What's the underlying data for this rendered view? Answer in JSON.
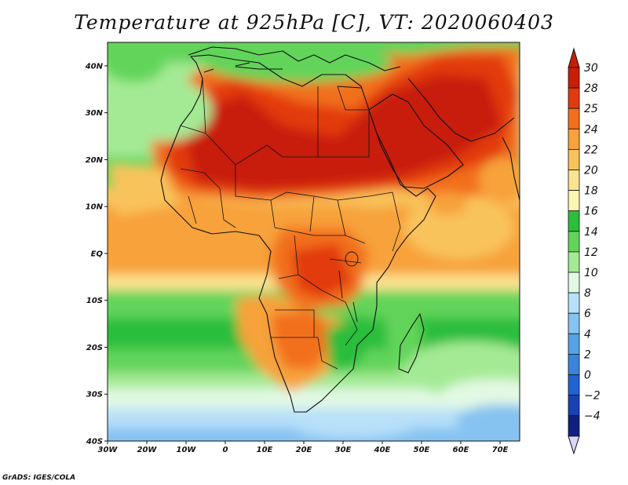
{
  "title": "Temperature at 925hPa [C], VT: 2020060403",
  "credit": "GrADS: IGES/COLA",
  "map": {
    "lon_range": [
      -30,
      75
    ],
    "lat_range": [
      -40,
      45
    ],
    "lat_ticks": [
      {
        "value": 40,
        "label": "40N"
      },
      {
        "value": 30,
        "label": "30N"
      },
      {
        "value": 20,
        "label": "20N"
      },
      {
        "value": 10,
        "label": "10N"
      },
      {
        "value": 0,
        "label": "EQ"
      },
      {
        "value": -10,
        "label": "10S"
      },
      {
        "value": -20,
        "label": "20S"
      },
      {
        "value": -30,
        "label": "30S"
      },
      {
        "value": -40,
        "label": "40S"
      }
    ],
    "lon_ticks": [
      {
        "value": -30,
        "label": "30W"
      },
      {
        "value": -20,
        "label": "20W"
      },
      {
        "value": -10,
        "label": "10W"
      },
      {
        "value": 0,
        "label": "0"
      },
      {
        "value": 10,
        "label": "10E"
      },
      {
        "value": 20,
        "label": "20E"
      },
      {
        "value": 30,
        "label": "30E"
      },
      {
        "value": 40,
        "label": "40E"
      },
      {
        "value": 50,
        "label": "50E"
      },
      {
        "value": 60,
        "label": "60E"
      },
      {
        "value": 70,
        "label": "70E"
      }
    ]
  },
  "colorbar": {
    "levels": [
      {
        "label": "30",
        "color": "#c81e08"
      },
      {
        "label": "28",
        "color": "#e23a10"
      },
      {
        "label": "25",
        "color": "#f2701a"
      },
      {
        "label": "24",
        "color": "#f7a23a"
      },
      {
        "label": "22",
        "color": "#f9c35c"
      },
      {
        "label": "20",
        "color": "#fbe391"
      },
      {
        "label": "18",
        "color": "#fcf5b4"
      },
      {
        "label": "16",
        "color": "#2cbe3c"
      },
      {
        "label": "14",
        "color": "#62d45a"
      },
      {
        "label": "12",
        "color": "#a4ea94"
      },
      {
        "label": "10",
        "color": "#e2f9e4"
      },
      {
        "label": "8",
        "color": "#b7e0f9"
      },
      {
        "label": "6",
        "color": "#86c3f1"
      },
      {
        "label": "4",
        "color": "#56a2e7"
      },
      {
        "label": "2",
        "color": "#3a84de"
      },
      {
        "label": "0",
        "color": "#2062d2"
      },
      {
        "label": "−2",
        "color": "#1842b3"
      },
      {
        "label": "−4",
        "color": "#0e2182"
      }
    ],
    "top_cap_color": "#c81e08",
    "bottom_cap_color": "#d9d5fb"
  }
}
